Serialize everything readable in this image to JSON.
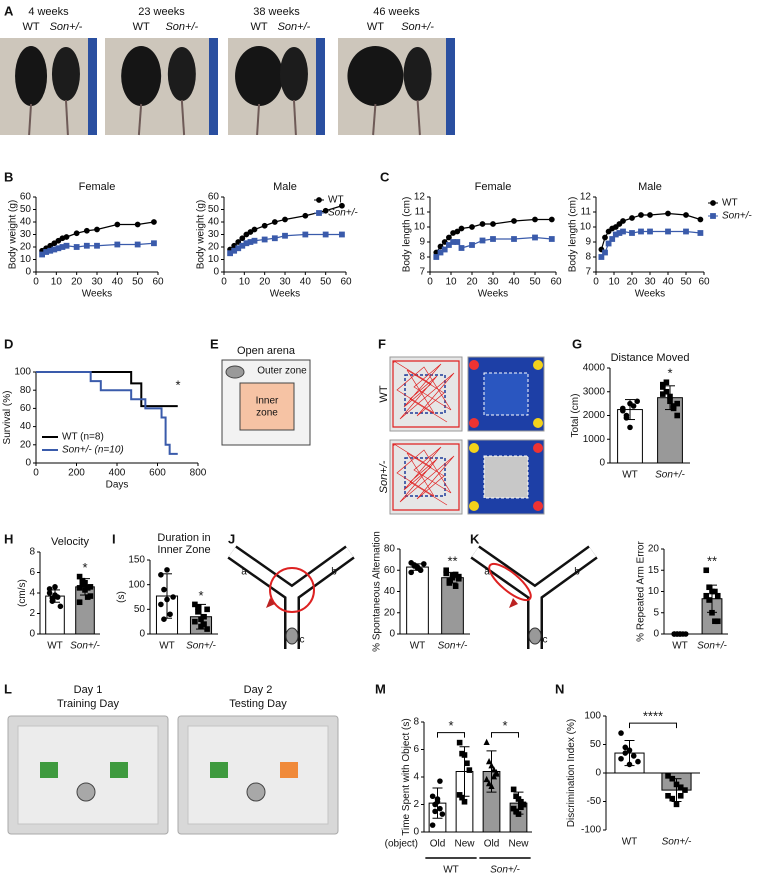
{
  "panel_labels": [
    "A",
    "B",
    "C",
    "D",
    "E",
    "F",
    "G",
    "H",
    "I",
    "J",
    "K",
    "L",
    "M",
    "N"
  ],
  "figure_A": {
    "photos": [
      {
        "age": "4 weeks",
        "left": "WT",
        "right": "Son+/-"
      },
      {
        "age": "23 weeks",
        "left": "WT",
        "right": "Son+/-"
      },
      {
        "age": "38 weeks",
        "left": "WT",
        "right": "Son+/-"
      },
      {
        "age": "46 weeks",
        "left": "WT",
        "right": "Son+/-"
      }
    ]
  },
  "figure_E": {
    "title": "Open arena",
    "outer": "Outer zone",
    "inner": [
      "Inner",
      "zone"
    ]
  },
  "figure_F": {
    "rows": [
      "WT",
      "Son+/-"
    ]
  },
  "figure_J": {
    "arms": [
      "a",
      "b",
      "c"
    ]
  },
  "figure_K": {
    "arms": [
      "a",
      "b",
      "c"
    ]
  },
  "figure_L": {
    "panels": [
      {
        "day": "Day 1",
        "label": "Training Day"
      },
      {
        "day": "Day 2",
        "label": "Testing Day"
      }
    ]
  },
  "chart_data": [
    {
      "type": "line",
      "title": "Female",
      "xlabel": "Weeks",
      "ylabel": "Body weight (g)",
      "x": [
        3,
        5,
        7,
        9,
        11,
        13,
        15,
        20,
        25,
        30,
        40,
        50,
        58
      ],
      "xlim": [
        0,
        60
      ],
      "xticks": [
        0,
        10,
        20,
        30,
        40,
        50,
        60
      ],
      "ylim": [
        0,
        60
      ],
      "yticks": [
        0,
        10,
        20,
        30,
        40,
        50,
        60
      ],
      "series": [
        {
          "name": "WT",
          "color": "#000000",
          "marker": "circle",
          "values": [
            17,
            19,
            21,
            23,
            25,
            27,
            28,
            31,
            33,
            34,
            38,
            38,
            40
          ]
        },
        {
          "name": "Son+/-",
          "color": "#3a5bab",
          "marker": "square",
          "values": [
            14,
            16,
            17,
            18,
            19,
            20,
            21,
            20,
            21,
            21,
            22,
            22,
            23
          ]
        }
      ]
    },
    {
      "type": "line",
      "title": "Male",
      "xlabel": "Weeks",
      "ylabel": "Body weight (g)",
      "legend": "upper right",
      "x": [
        3,
        5,
        7,
        9,
        11,
        13,
        15,
        20,
        25,
        30,
        40,
        50,
        58
      ],
      "xlim": [
        0,
        60
      ],
      "xticks": [
        0,
        10,
        20,
        30,
        40,
        50,
        60
      ],
      "ylim": [
        0,
        60
      ],
      "yticks": [
        0,
        10,
        20,
        30,
        40,
        50,
        60
      ],
      "series": [
        {
          "name": "WT",
          "color": "#000000",
          "marker": "circle",
          "values": [
            18,
            21,
            24,
            27,
            30,
            32,
            34,
            37,
            40,
            42,
            45,
            49,
            53
          ]
        },
        {
          "name": "Son+/-",
          "color": "#3a5bab",
          "marker": "square",
          "values": [
            15,
            17,
            19,
            21,
            23,
            24,
            25,
            26,
            27,
            29,
            30,
            30,
            30
          ]
        }
      ]
    },
    {
      "type": "line",
      "title": "Female",
      "xlabel": "Weeks",
      "ylabel": "Body length (cm)",
      "x": [
        3,
        5,
        7,
        9,
        11,
        13,
        15,
        20,
        25,
        30,
        40,
        50,
        58
      ],
      "xlim": [
        0,
        60
      ],
      "xticks": [
        0,
        10,
        20,
        30,
        40,
        50,
        60
      ],
      "ylim": [
        7,
        12
      ],
      "yticks": [
        7,
        8,
        9,
        10,
        11,
        12
      ],
      "series": [
        {
          "name": "WT",
          "color": "#000000",
          "marker": "circle",
          "values": [
            8.3,
            8.7,
            9.0,
            9.3,
            9.6,
            9.7,
            9.9,
            10.0,
            10.2,
            10.2,
            10.4,
            10.5,
            10.5
          ]
        },
        {
          "name": "Son+/-",
          "color": "#3a5bab",
          "marker": "square",
          "values": [
            8.0,
            8.3,
            8.5,
            8.8,
            9.0,
            9.0,
            8.6,
            8.8,
            9.1,
            9.2,
            9.2,
            9.3,
            9.2
          ]
        }
      ]
    },
    {
      "type": "line",
      "title": "Male",
      "xlabel": "Weeks",
      "ylabel": "Body length (cm)",
      "legend": "right",
      "x": [
        3,
        5,
        7,
        9,
        11,
        13,
        15,
        20,
        25,
        30,
        40,
        50,
        58
      ],
      "xlim": [
        0,
        60
      ],
      "xticks": [
        0,
        10,
        20,
        30,
        40,
        50,
        60
      ],
      "ylim": [
        7,
        12
      ],
      "yticks": [
        7,
        8,
        9,
        10,
        11,
        12
      ],
      "series": [
        {
          "name": "WT",
          "color": "#000000",
          "marker": "circle",
          "values": [
            8.5,
            9.3,
            9.7,
            9.9,
            10.0,
            10.2,
            10.4,
            10.6,
            10.8,
            10.8,
            10.9,
            10.8,
            10.5
          ]
        },
        {
          "name": "Son+/-",
          "color": "#3a5bab",
          "marker": "square",
          "values": [
            8.0,
            8.3,
            8.9,
            9.2,
            9.5,
            9.6,
            9.7,
            9.6,
            9.7,
            9.7,
            9.7,
            9.7,
            9.6
          ]
        }
      ]
    },
    {
      "type": "step",
      "xlabel": "Days",
      "ylabel": "Survival (%)",
      "legend": "lower left",
      "annotation": "*",
      "annotation_color": "#e8312f",
      "xlim": [
        0,
        800
      ],
      "xticks": [
        0,
        200,
        400,
        600,
        800
      ],
      "ylim": [
        0,
        100
      ],
      "yticks": [
        0,
        20,
        40,
        60,
        80,
        100
      ],
      "series": [
        {
          "name": "WT (n=8)",
          "color": "#000000",
          "x": [
            0,
            470,
            520,
            700
          ],
          "values": [
            100,
            87.5,
            62.5,
            62.5
          ]
        },
        {
          "name": "Son+/- (n=10)",
          "color": "#3a5bab",
          "x": [
            0,
            270,
            320,
            470,
            540,
            620,
            640,
            660,
            700
          ],
          "values": [
            100,
            90,
            80,
            70,
            60,
            50,
            20,
            10,
            10
          ]
        }
      ]
    },
    {
      "type": "bar",
      "title": "Distance Moved",
      "ylabel": "Total (cm)",
      "categories": [
        "WT",
        "Son+/-"
      ],
      "values": [
        2250,
        2750
      ],
      "errors": [
        420,
        500
      ],
      "colors": [
        "#ffffff",
        "#999999"
      ],
      "markers": [
        "circle",
        "square"
      ],
      "points": [
        [
          2300,
          2000,
          1500,
          2400,
          2600,
          2200,
          1900,
          2500
        ],
        [
          3200,
          3400,
          2800,
          2400,
          2000,
          2900,
          3000,
          2600,
          2300,
          2500,
          3300
        ]
      ],
      "ylim": [
        0,
        4000
      ],
      "yticks": [
        0,
        1000,
        2000,
        3000,
        4000
      ],
      "annotations": [
        {
          "text": "*",
          "categories": [
            1
          ]
        }
      ],
      "annotation_color": "#e8312f"
    },
    {
      "type": "bar",
      "title": "Velocity",
      "ylabel": "(cm/s)",
      "categories": [
        "WT",
        "Son+/-"
      ],
      "values": [
        3.7,
        4.6
      ],
      "errors": [
        0.6,
        0.8
      ],
      "colors": [
        "#ffffff",
        "#999999"
      ],
      "markers": [
        "circle",
        "square"
      ],
      "points": [
        [
          4.4,
          3.2,
          3.8,
          3.6,
          2.7,
          4.0,
          3.5,
          4.6
        ],
        [
          5.6,
          5.2,
          4.3,
          3.6,
          4.6,
          3.1,
          4.9,
          5.0,
          4.5,
          3.7,
          4.5
        ]
      ],
      "ylim": [
        0,
        8
      ],
      "yticks": [
        0,
        2,
        4,
        6,
        8
      ],
      "annotations": [
        {
          "text": "*",
          "categories": [
            1
          ]
        }
      ],
      "annotation_color": "#e8312f"
    },
    {
      "type": "bar",
      "title": [
        "Duration in",
        "Inner Zone"
      ],
      "ylabel": "(s)",
      "categories": [
        "WT",
        "Son+/-"
      ],
      "values": [
        77,
        35
      ],
      "errors": [
        45,
        25
      ],
      "colors": [
        "#ffffff",
        "#999999"
      ],
      "markers": [
        "circle",
        "square"
      ],
      "points": [
        [
          120,
          90,
          70,
          40,
          75,
          60,
          30,
          130
        ],
        [
          60,
          45,
          30,
          20,
          10,
          25,
          55,
          15,
          35,
          50
        ]
      ],
      "ylim": [
        0,
        150
      ],
      "yticks": [
        0,
        50,
        100,
        150
      ],
      "annotations": [
        {
          "text": "*",
          "categories": [
            1
          ]
        }
      ],
      "annotation_color": "#e8312f"
    },
    {
      "type": "bar",
      "ylabel": "% Spontaneous Alternation",
      "categories": [
        "WT",
        "Son+/-"
      ],
      "values": [
        63,
        53
      ],
      "errors": [
        3,
        5
      ],
      "colors": [
        "#ffffff",
        "#999999"
      ],
      "markers": [
        "circle",
        "square"
      ],
      "points": [
        [
          67,
          64,
          62,
          60,
          66,
          58,
          65,
          63
        ],
        [
          60,
          50,
          55,
          45,
          52,
          57,
          48,
          53,
          56,
          54
        ]
      ],
      "ylim": [
        0,
        80
      ],
      "yticks": [
        0,
        20,
        40,
        60,
        80
      ],
      "annotations": [
        {
          "text": "**",
          "categories": [
            1
          ]
        }
      ],
      "annotation_color": "#e8312f"
    },
    {
      "type": "bar",
      "ylabel": "% Repeated Arm Error",
      "categories": [
        "WT",
        "Son+/-"
      ],
      "values": [
        0,
        8.3
      ],
      "errors": [
        0,
        3.2
      ],
      "colors": [
        "#ffffff",
        "#999999"
      ],
      "markers": [
        "circle",
        "square"
      ],
      "points": [
        [
          0,
          0,
          0,
          0,
          0,
          0,
          0,
          0
        ],
        [
          15,
          11,
          10,
          10,
          9,
          9,
          8,
          5,
          3,
          3
        ]
      ],
      "ylim": [
        0,
        20
      ],
      "yticks": [
        0,
        5,
        10,
        15,
        20
      ],
      "annotations": [
        {
          "text": "**",
          "categories": [
            1
          ]
        }
      ],
      "annotation_color": "#e8312f"
    },
    {
      "type": "bar",
      "ylabel": "Time Spent with Object (s)",
      "categories": [
        "Old",
        "New",
        "Old",
        "New"
      ],
      "x_prefix": "(object)",
      "groups": [
        {
          "name": "WT",
          "categories": [
            0,
            1
          ]
        },
        {
          "name": "Son+/-",
          "categories": [
            2,
            3
          ]
        }
      ],
      "values": [
        2.1,
        4.4,
        4.4,
        2.1
      ],
      "errors": [
        1.1,
        1.8,
        1.5,
        0.8
      ],
      "colors": [
        "#ffffff",
        "#ffffff",
        "#999999",
        "#999999"
      ],
      "markers": [
        "circle",
        "square",
        "triangle",
        "square"
      ],
      "points": [
        [
          2.6,
          1.5,
          2.2,
          3.7,
          1.3,
          0.5,
          2.0,
          2.4,
          1.7
        ],
        [
          6.5,
          5.7,
          5.6,
          5.0,
          4.5,
          2.7,
          2.5,
          2.2
        ],
        [
          6.5,
          5.1,
          4.8,
          4.5,
          4.3,
          3.8,
          3.5,
          3.3,
          4.0,
          4.2
        ],
        [
          3.1,
          2.6,
          2.4,
          2.2,
          2.0,
          1.7,
          1.5,
          1.3,
          1.8,
          2.0
        ]
      ],
      "ylim": [
        0,
        8
      ],
      "yticks": [
        0,
        2,
        4,
        6,
        8
      ],
      "annotations": [
        {
          "text": "*",
          "categories": [
            0,
            1
          ]
        },
        {
          "text": "*",
          "categories": [
            2,
            3
          ]
        }
      ],
      "annotation_color": "#e8312f"
    },
    {
      "type": "bar",
      "ylabel": "Discrimination Index (%)",
      "categories": [
        "WT",
        "Son+/-"
      ],
      "values": [
        35,
        -30
      ],
      "errors": [
        22,
        20
      ],
      "colors": [
        "#ffffff",
        "#999999"
      ],
      "markers": [
        "circle",
        "square"
      ],
      "points": [
        [
          70,
          45,
          40,
          30,
          20,
          25,
          35,
          15
        ],
        [
          -5,
          -10,
          -20,
          -25,
          -30,
          -40,
          -45,
          -55,
          -40
        ]
      ],
      "ylim": [
        -100,
        100
      ],
      "yticks": [
        -100,
        -50,
        0,
        50,
        100
      ],
      "annotations": [
        {
          "text": "****",
          "categories": [
            0,
            1
          ]
        }
      ],
      "annotation_color": "#e8312f"
    }
  ]
}
